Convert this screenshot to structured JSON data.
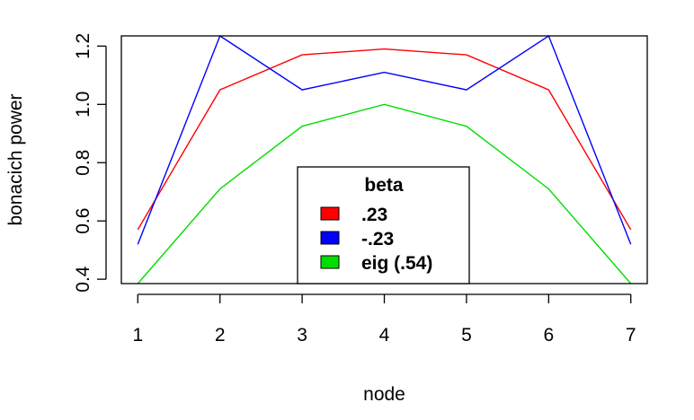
{
  "chart_data": {
    "type": "line",
    "xlabel": "node",
    "ylabel": "bonacich power",
    "x": [
      1,
      2,
      3,
      4,
      5,
      6,
      7
    ],
    "xlim": [
      0.8,
      7.2
    ],
    "ylim": [
      0.385,
      1.235
    ],
    "x_ticks": [
      1,
      2,
      3,
      4,
      5,
      6,
      7
    ],
    "y_ticks": [
      0.4,
      0.6,
      0.8,
      1.0,
      1.2
    ],
    "y_tick_labels": [
      "0.4",
      "0.6",
      "0.8",
      "1.0",
      "1.2"
    ],
    "grid": false,
    "legend": {
      "title": "beta",
      "placement": "bottom-center"
    },
    "series": [
      {
        "name": ".23",
        "color": "#ff0000",
        "values": [
          0.57,
          1.05,
          1.17,
          1.19,
          1.17,
          1.05,
          0.57
        ]
      },
      {
        "name": "-.23",
        "color": "#0000ff",
        "values": [
          0.52,
          1.235,
          1.05,
          1.11,
          1.05,
          1.235,
          0.52
        ]
      },
      {
        "name": "eig (.54)",
        "color": "#00dd00",
        "values": [
          0.385,
          0.71,
          0.925,
          1.0,
          0.925,
          0.71,
          0.385
        ]
      }
    ]
  }
}
